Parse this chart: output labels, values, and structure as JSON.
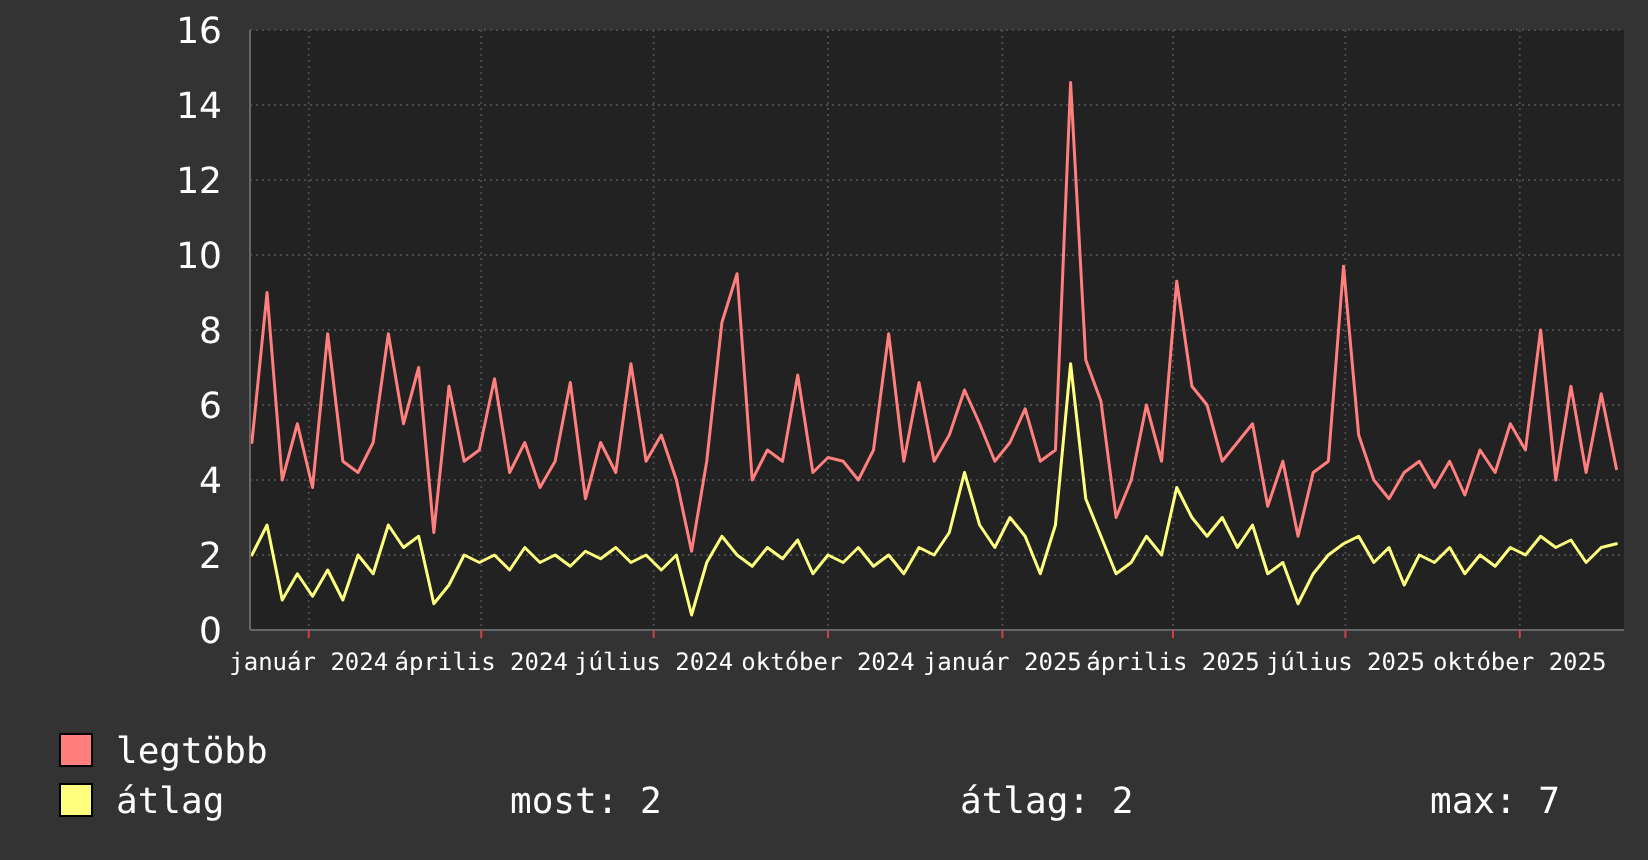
{
  "chart_data": {
    "type": "line",
    "x": [
      "2023-12-02",
      "2023-12-10",
      "2023-12-18",
      "2023-12-26",
      "2024-01-03",
      "2024-01-11",
      "2024-01-19",
      "2024-01-27",
      "2024-02-04",
      "2024-02-12",
      "2024-02-20",
      "2024-02-28",
      "2024-03-07",
      "2024-03-15",
      "2024-03-23",
      "2024-03-31",
      "2024-04-08",
      "2024-04-16",
      "2024-04-24",
      "2024-05-02",
      "2024-05-10",
      "2024-05-18",
      "2024-05-26",
      "2024-06-03",
      "2024-06-11",
      "2024-06-19",
      "2024-06-27",
      "2024-07-05",
      "2024-07-13",
      "2024-07-21",
      "2024-07-29",
      "2024-08-06",
      "2024-08-14",
      "2024-08-22",
      "2024-08-30",
      "2024-09-07",
      "2024-09-15",
      "2024-09-23",
      "2024-10-01",
      "2024-10-09",
      "2024-10-17",
      "2024-10-25",
      "2024-11-02",
      "2024-11-10",
      "2024-11-18",
      "2024-11-26",
      "2024-12-04",
      "2024-12-12",
      "2024-12-20",
      "2024-12-28",
      "2025-01-05",
      "2025-01-13",
      "2025-01-21",
      "2025-01-29",
      "2025-02-06",
      "2025-02-14",
      "2025-02-22",
      "2025-03-02",
      "2025-03-10",
      "2025-03-18",
      "2025-03-26",
      "2025-04-03",
      "2025-04-11",
      "2025-04-19",
      "2025-04-27",
      "2025-05-05",
      "2025-05-13",
      "2025-05-21",
      "2025-05-29",
      "2025-06-06",
      "2025-06-14",
      "2025-06-22",
      "2025-06-30",
      "2025-07-08",
      "2025-07-16",
      "2025-07-24",
      "2025-08-01",
      "2025-08-09",
      "2025-08-17",
      "2025-08-25",
      "2025-09-02",
      "2025-09-10",
      "2025-09-18",
      "2025-09-26",
      "2025-10-04",
      "2025-10-12",
      "2025-10-20",
      "2025-10-28",
      "2025-11-05",
      "2025-11-13",
      "2025-11-21"
    ],
    "series": [
      {
        "name": "legtöbb",
        "color": "#ff7f7f",
        "values": [
          5.0,
          9.0,
          4.0,
          5.5,
          3.8,
          7.9,
          4.5,
          4.2,
          5.0,
          7.9,
          5.5,
          7.0,
          2.6,
          6.5,
          4.5,
          4.8,
          6.7,
          4.2,
          5.0,
          3.8,
          4.5,
          6.6,
          3.5,
          5.0,
          4.2,
          7.1,
          4.5,
          5.2,
          4.0,
          2.1,
          4.5,
          8.2,
          9.5,
          4.0,
          4.8,
          4.5,
          6.8,
          4.2,
          4.6,
          4.5,
          4.0,
          4.8,
          7.9,
          4.5,
          6.6,
          4.5,
          5.2,
          6.4,
          5.5,
          4.5,
          5.0,
          5.9,
          4.5,
          4.8,
          14.6,
          7.2,
          6.1,
          3.0,
          4.0,
          6.0,
          4.5,
          9.3,
          6.5,
          6.0,
          4.5,
          5.0,
          5.5,
          3.3,
          4.5,
          2.5,
          4.2,
          4.5,
          9.7,
          5.2,
          4.0,
          3.5,
          4.2,
          4.5,
          3.8,
          4.5,
          3.6,
          4.8,
          4.2,
          5.5,
          4.8,
          8.0,
          4.0,
          6.5,
          4.2,
          6.3,
          4.3
        ]
      },
      {
        "name": "átlag",
        "color": "#ffff7f",
        "values": [
          2.0,
          2.8,
          0.8,
          1.5,
          0.9,
          1.6,
          0.8,
          2.0,
          1.5,
          2.8,
          2.2,
          2.5,
          0.7,
          1.2,
          2.0,
          1.8,
          2.0,
          1.6,
          2.2,
          1.8,
          2.0,
          1.7,
          2.1,
          1.9,
          2.2,
          1.8,
          2.0,
          1.6,
          2.0,
          0.4,
          1.8,
          2.5,
          2.0,
          1.7,
          2.2,
          1.9,
          2.4,
          1.5,
          2.0,
          1.8,
          2.2,
          1.7,
          2.0,
          1.5,
          2.2,
          2.0,
          2.6,
          4.2,
          2.8,
          2.2,
          3.0,
          2.5,
          1.5,
          2.8,
          7.1,
          3.5,
          2.5,
          1.5,
          1.8,
          2.5,
          2.0,
          3.8,
          3.0,
          2.5,
          3.0,
          2.2,
          2.8,
          1.5,
          1.8,
          0.7,
          1.5,
          2.0,
          2.3,
          2.5,
          1.8,
          2.2,
          1.2,
          2.0,
          1.8,
          2.2,
          1.5,
          2.0,
          1.7,
          2.2,
          2.0,
          2.5,
          2.2,
          2.4,
          1.8,
          2.2,
          2.3
        ]
      }
    ],
    "xlim": [
      "2023-12-01",
      "2025-11-25"
    ],
    "xticks": [
      {
        "value": "2024-01-01",
        "label": "január 2024"
      },
      {
        "value": "2024-04-01",
        "label": "április 2024"
      },
      {
        "value": "2024-07-01",
        "label": "július 2024"
      },
      {
        "value": "2024-10-01",
        "label": "október 2024"
      },
      {
        "value": "2025-01-01",
        "label": "január 2025"
      },
      {
        "value": "2025-04-01",
        "label": "április 2025"
      },
      {
        "value": "2025-07-01",
        "label": "július 2025"
      },
      {
        "value": "2025-10-01",
        "label": "október 2025"
      }
    ],
    "ylim": [
      0,
      16
    ],
    "yticks": [
      0,
      2,
      4,
      6,
      8,
      10,
      12,
      14,
      16
    ],
    "grid": true,
    "legend": "bottom left",
    "line_style": "solid",
    "marker": "none",
    "annotations": [
      "most: 2",
      "átlag: 2",
      "max: 7"
    ]
  }
}
